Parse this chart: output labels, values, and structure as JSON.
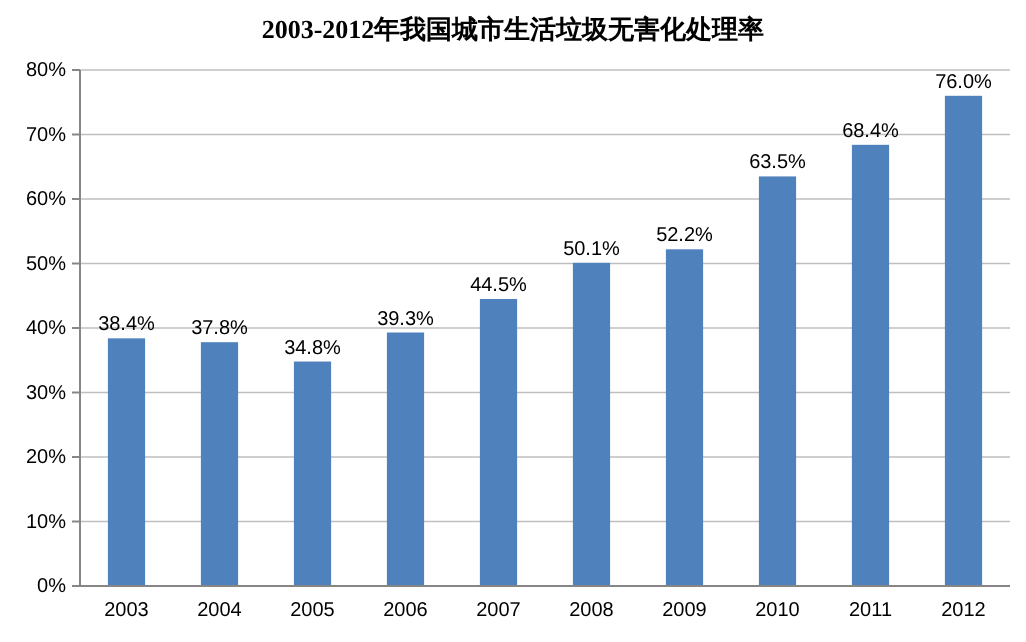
{
  "chart_data": {
    "type": "bar",
    "title": "2003-2012年我国城市生活垃圾无害化处理率",
    "categories": [
      "2003",
      "2004",
      "2005",
      "2006",
      "2007",
      "2008",
      "2009",
      "2010",
      "2011",
      "2012"
    ],
    "values": [
      38.4,
      37.8,
      34.8,
      39.3,
      44.5,
      50.1,
      52.2,
      63.5,
      68.4,
      76.0
    ],
    "value_labels": [
      "38.4%",
      "37.8%",
      "34.8%",
      "39.3%",
      "44.5%",
      "50.1%",
      "52.2%",
      "63.5%",
      "68.4%",
      "76.0%"
    ],
    "color": "#4f81bd",
    "ylim": [
      0,
      80
    ],
    "yticks": [
      {
        "value": 0,
        "label": "0%"
      },
      {
        "value": 10,
        "label": "10%"
      },
      {
        "value": 20,
        "label": "20%"
      },
      {
        "value": 30,
        "label": "30%"
      },
      {
        "value": 40,
        "label": "40%"
      },
      {
        "value": 50,
        "label": "50%"
      },
      {
        "value": 60,
        "label": "60%"
      },
      {
        "value": 70,
        "label": "70%"
      },
      {
        "value": 80,
        "label": "80%"
      }
    ],
    "grid": "y"
  }
}
